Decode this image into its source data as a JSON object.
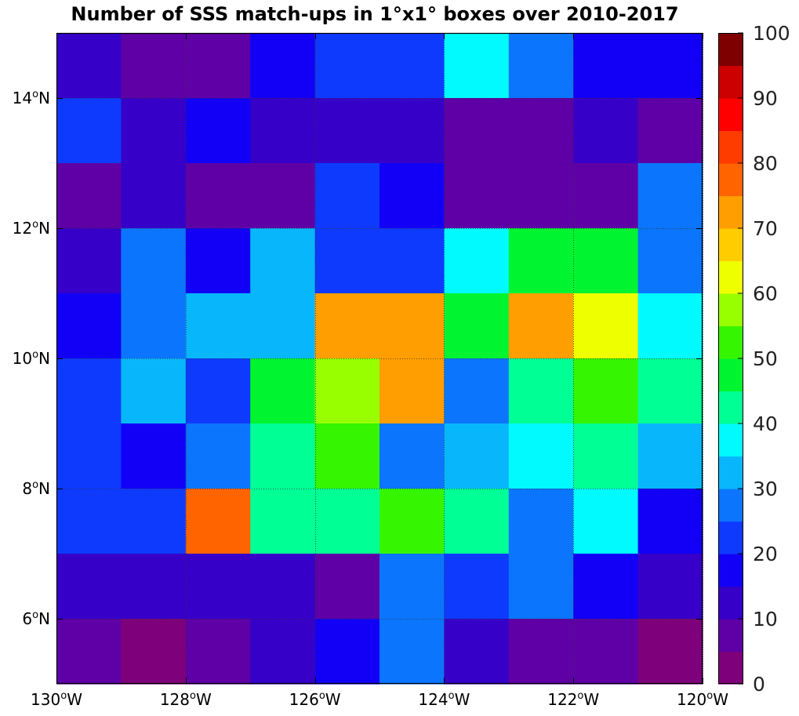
{
  "chart_data": {
    "type": "heatmap",
    "title": "Number of SSS match-ups in 1°x1° boxes over 2010-2017",
    "xlabel": "",
    "ylabel": "",
    "x_range": [
      -130,
      -120
    ],
    "y_range": [
      5,
      15
    ],
    "x_ticks": [
      {
        "value": -130,
        "num": "130",
        "sup": "o",
        "hem": "W"
      },
      {
        "value": -128,
        "num": "128",
        "sup": "o",
        "hem": "W"
      },
      {
        "value": -126,
        "num": "126",
        "sup": "o",
        "hem": "W"
      },
      {
        "value": -124,
        "num": "124",
        "sup": "o",
        "hem": "W"
      },
      {
        "value": -122,
        "num": "122",
        "sup": "o",
        "hem": "W"
      },
      {
        "value": -120,
        "num": "120",
        "sup": "o",
        "hem": "W"
      }
    ],
    "y_ticks": [
      {
        "value": 6,
        "num": "6",
        "sup": "o",
        "hem": "N"
      },
      {
        "value": 8,
        "num": "8",
        "sup": "o",
        "hem": "N"
      },
      {
        "value": 10,
        "num": "10",
        "sup": "o",
        "hem": "N"
      },
      {
        "value": 12,
        "num": "12",
        "sup": "o",
        "hem": "N"
      },
      {
        "value": 14,
        "num": "14",
        "sup": "o",
        "hem": "N"
      }
    ],
    "grid": true,
    "grid_style": "dotted",
    "cell_size_deg": 1,
    "lon_centers": [
      -129.5,
      -128.5,
      -127.5,
      -126.5,
      -125.5,
      -124.5,
      -123.5,
      -122.5,
      -121.5,
      -120.5
    ],
    "lat_centers_top_to_bottom": [
      14.5,
      13.5,
      12.5,
      11.5,
      10.5,
      9.5,
      8.5,
      7.5,
      6.5,
      5.5
    ],
    "values": [
      [
        12,
        6,
        7,
        17,
        22,
        22,
        38,
        27,
        17,
        17
      ],
      [
        20,
        12,
        17,
        12,
        12,
        12,
        7,
        7,
        12,
        7
      ],
      [
        6,
        12,
        8,
        8,
        22,
        17,
        8,
        8,
        8,
        27
      ],
      [
        12,
        27,
        17,
        33,
        22,
        22,
        38,
        48,
        48,
        27
      ],
      [
        17,
        27,
        33,
        33,
        73,
        73,
        48,
        73,
        62,
        38
      ],
      [
        22,
        33,
        22,
        48,
        57,
        73,
        27,
        43,
        52,
        43
      ],
      [
        22,
        17,
        27,
        43,
        52,
        27,
        32,
        38,
        43,
        32
      ],
      [
        22,
        22,
        77,
        43,
        43,
        52,
        43,
        27,
        38,
        17
      ],
      [
        12,
        12,
        12,
        12,
        7,
        27,
        22,
        27,
        17,
        12
      ],
      [
        8,
        2,
        8,
        12,
        18,
        27,
        12,
        7,
        7,
        3
      ]
    ],
    "colorbar": {
      "range": [
        0,
        100
      ],
      "step": 5,
      "ticks": [
        "0",
        "10",
        "20",
        "30",
        "40",
        "50",
        "60",
        "70",
        "80",
        "90",
        "100"
      ],
      "colors": [
        "#7e007a",
        "#5e00a6",
        "#3600c8",
        "#1200f6",
        "#0e3afe",
        "#0b75fe",
        "#08b7fb",
        "#00fafe",
        "#00ff95",
        "#00f530",
        "#35f500",
        "#98ff00",
        "#eeff00",
        "#ffcc00",
        "#ff9e00",
        "#ff6400",
        "#ff3c00",
        "#ff0000",
        "#cc0000",
        "#7e0000"
      ]
    }
  }
}
